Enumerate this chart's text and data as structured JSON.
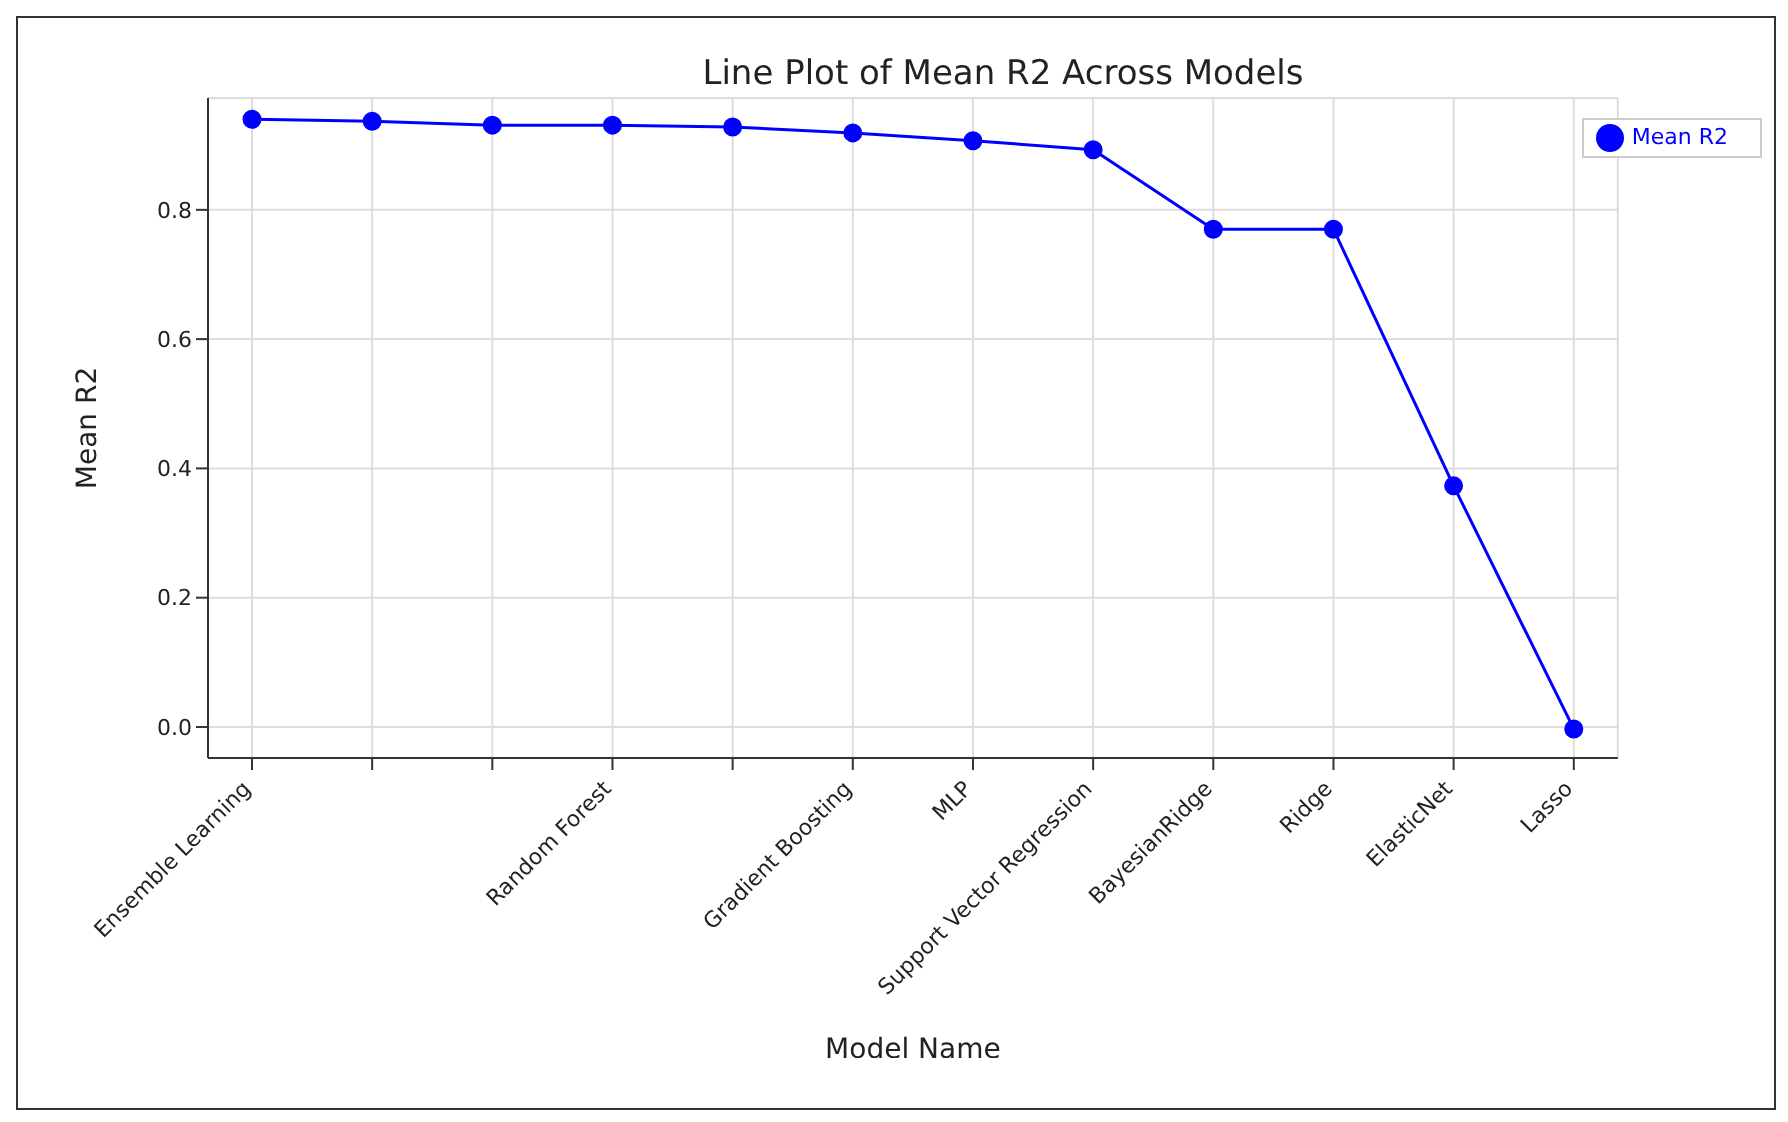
{
  "chart_data": {
    "type": "line",
    "title": "Line Plot of Mean R2 Across Models",
    "xlabel": "Model Name",
    "ylabel": "Mean R2",
    "categories": [
      "Ensemble Learning",
      null,
      null,
      "Random Forest",
      null,
      "Gradient Boosting",
      "MLP",
      "Support Vector Regression",
      "BayesianRidge",
      "Ridge",
      "ElasticNet",
      "Lasso"
    ],
    "series": [
      {
        "name": "Mean R2",
        "color": "#0000ff",
        "values": [
          0.94,
          0.937,
          0.931,
          0.931,
          0.928,
          0.919,
          0.907,
          0.893,
          0.77,
          0.77,
          0.373,
          -0.003
        ]
      }
    ],
    "ylim": [
      -0.048,
      0.973
    ],
    "yticks": [
      {
        "value": 0,
        "label": "0.0"
      },
      {
        "value": 0.2,
        "label": "0.2"
      },
      {
        "value": 0.4,
        "label": "0.4"
      },
      {
        "value": 0.6,
        "label": "0.6"
      },
      {
        "value": 0.8,
        "label": "0.8"
      }
    ],
    "grid": true,
    "legend": "top right",
    "marker": "circle",
    "line_style": "solid"
  }
}
